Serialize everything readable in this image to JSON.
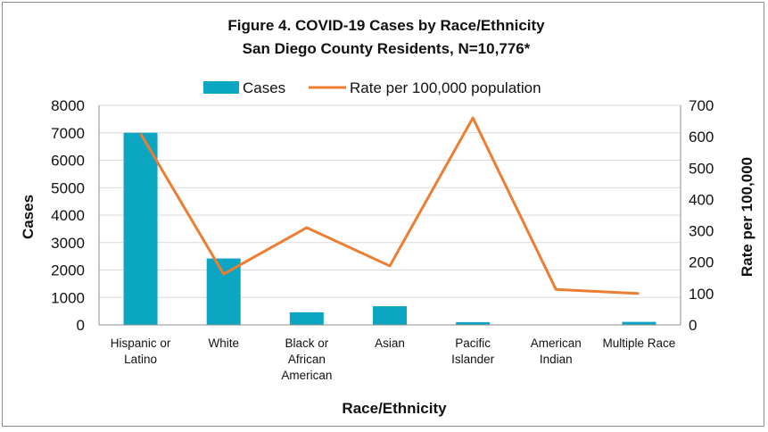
{
  "chart_data": {
    "type": "bar",
    "title": "Figure 4. COVID-19 Cases by Race/Ethnicity",
    "subtitle": "San Diego County Residents, N=10,776*",
    "xlabel": "Race/Ethnicity",
    "ylabel": "Cases",
    "y2label": "Rate per 100,000",
    "categories": [
      [
        "Hispanic or",
        "Latino"
      ],
      [
        "White"
      ],
      [
        "Black or",
        "African",
        "American"
      ],
      [
        "Asian"
      ],
      [
        "Pacific",
        "Islander"
      ],
      [
        "American",
        "Indian"
      ],
      [
        "Multiple Race"
      ]
    ],
    "series": [
      {
        "name": "Cases",
        "kind": "bar",
        "axis": "left",
        "color": "#0aa6c2",
        "values": [
          7000,
          2420,
          460,
          680,
          100,
          15,
          110
        ]
      },
      {
        "name": "Rate per 100,000 population",
        "kind": "line",
        "axis": "right",
        "color": "#ed7d31",
        "values": [
          610,
          162,
          310,
          188,
          660,
          113,
          100
        ]
      }
    ],
    "ylim": [
      0,
      8000
    ],
    "yticks": [
      0,
      1000,
      2000,
      3000,
      4000,
      5000,
      6000,
      7000,
      8000
    ],
    "y2lim": [
      0,
      700
    ],
    "y2ticks": [
      0,
      100,
      200,
      300,
      400,
      500,
      600,
      700
    ],
    "grid": true,
    "legend_position": "top"
  }
}
